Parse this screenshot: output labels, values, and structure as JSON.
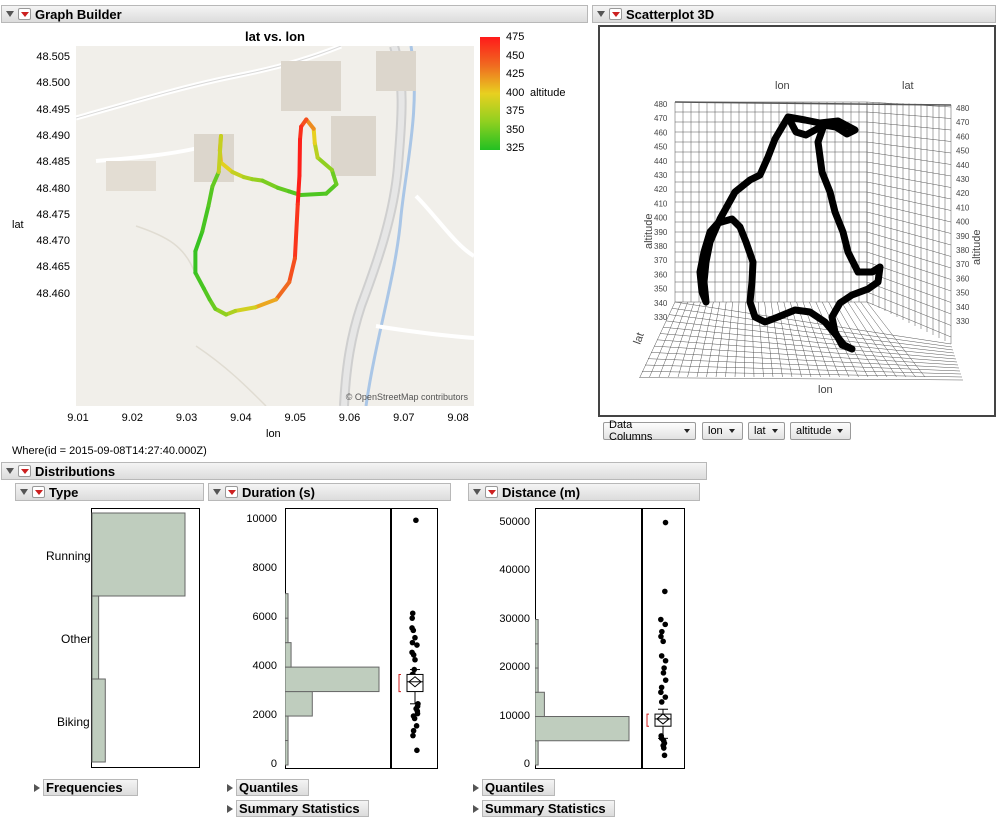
{
  "graph_builder": {
    "title": "Graph Builder",
    "plot_title": "lat vs. lon",
    "xlabel": "lon",
    "ylabel": "lat",
    "x_ticks": [
      "9.01",
      "9.02",
      "9.03",
      "9.04",
      "9.05",
      "9.06",
      "9.07",
      "9.08"
    ],
    "y_ticks": [
      "48.505",
      "48.500",
      "48.495",
      "48.490",
      "48.485",
      "48.480",
      "48.475",
      "48.470",
      "48.465",
      "48.460"
    ],
    "legend_title": "altitude",
    "legend_ticks": [
      "475",
      "450",
      "425",
      "400",
      "375",
      "350",
      "325"
    ],
    "attribution": "© OpenStreetMap contributors",
    "where": "Where(id = 2015-09-08T14:27:40.000Z)",
    "colors": {
      "high": "#ff1a1a",
      "mid": "#e8d020",
      "low": "#22c022"
    }
  },
  "scatter3d": {
    "title": "Scatterplot 3D",
    "axis_labels": {
      "lon_top": "lon",
      "lat_top": "lat",
      "altitude_left": "altitude",
      "altitude_right": "altitude",
      "lat_bottom": "lat",
      "lon_bottom": "lon"
    },
    "alt_ticks": [
      "480",
      "470",
      "460",
      "450",
      "440",
      "430",
      "420",
      "410",
      "400",
      "390",
      "380",
      "370",
      "360",
      "350",
      "340",
      "330"
    ],
    "dropdowns": [
      "Data Columns",
      "lon",
      "lat",
      "altitude"
    ]
  },
  "distributions": {
    "title": "Distributions",
    "type": {
      "title": "Type",
      "categories": [
        "Running",
        "Other",
        "Biking"
      ],
      "footer": "Frequencies"
    },
    "duration": {
      "title": "Duration (s)",
      "ticks": [
        "10000",
        "8000",
        "6000",
        "4000",
        "2000",
        "0"
      ],
      "footer1": "Quantiles",
      "footer2": "Summary Statistics"
    },
    "distance": {
      "title": "Distance (m)",
      "ticks": [
        "50000",
        "40000",
        "30000",
        "20000",
        "10000",
        "0"
      ],
      "footer1": "Quantiles",
      "footer2": "Summary Statistics"
    }
  },
  "chart_data": [
    {
      "type": "scatter",
      "title": "lat vs. lon",
      "xlabel": "lon",
      "ylabel": "lat",
      "xlim": [
        9.01,
        9.08
      ],
      "ylim": [
        48.458,
        48.508
      ],
      "color_by": "altitude",
      "color_range": [
        325,
        475
      ],
      "x": [
        9.0355,
        9.0353,
        9.0355,
        9.0375,
        9.0395,
        9.041,
        9.0428,
        9.0455,
        9.0475,
        9.0495,
        9.054,
        9.0558,
        9.055,
        9.0525,
        9.052,
        9.0518,
        9.0505,
        9.0496,
        9.0494,
        9.0493,
        9.049,
        9.0485,
        9.0475,
        9.0452,
        9.0415,
        9.038,
        9.0364,
        9.0345,
        9.0335,
        9.0325,
        9.031,
        9.031,
        9.0322,
        9.0333,
        9.034,
        9.0351,
        9.0355
      ],
      "y": [
        48.4955,
        48.4935,
        48.4918,
        48.4905,
        48.4898,
        48.4895,
        48.4893,
        48.4883,
        48.4878,
        48.4873,
        48.4875,
        48.4888,
        48.4908,
        48.4925,
        48.4945,
        48.4965,
        48.4978,
        48.4968,
        48.495,
        48.49,
        48.486,
        48.4785,
        48.4752,
        48.4728,
        48.4717,
        48.4712,
        48.4707,
        48.4715,
        48.4728,
        48.4743,
        48.4765,
        48.4795,
        48.4822,
        48.4858,
        48.4885,
        48.4905,
        48.4955
      ],
      "altitude": [
        420,
        415,
        405,
        390,
        380,
        370,
        360,
        350,
        345,
        340,
        340,
        345,
        355,
        370,
        390,
        410,
        440,
        460,
        470,
        475,
        470,
        455,
        445,
        430,
        400,
        380,
        370,
        355,
        345,
        340,
        335,
        330,
        335,
        340,
        345,
        350,
        420
      ]
    },
    {
      "type": "bar",
      "title": "Type",
      "categories": [
        "Running",
        "Other",
        "Biking"
      ],
      "values": [
        42,
        3,
        6
      ]
    },
    {
      "type": "bar",
      "title": "Duration (s)",
      "categories": [
        "0-1000",
        "1000-2000",
        "2000-3000",
        "3000-4000",
        "4000-5000",
        "5000-6000",
        "6000-7000"
      ],
      "values": [
        1,
        1,
        9,
        31,
        2,
        1,
        1
      ],
      "ylim": [
        0,
        10500
      ],
      "outliers": [
        10000
      ]
    },
    {
      "type": "bar",
      "title": "Distance (m)",
      "categories": [
        "0-5000",
        "5000-10000",
        "10000-15000",
        "15000-20000",
        "20000-25000",
        "25000-30000"
      ],
      "values": [
        1,
        30,
        3,
        1,
        1,
        1
      ],
      "ylim": [
        0,
        53000
      ],
      "outliers": [
        50000
      ]
    }
  ]
}
